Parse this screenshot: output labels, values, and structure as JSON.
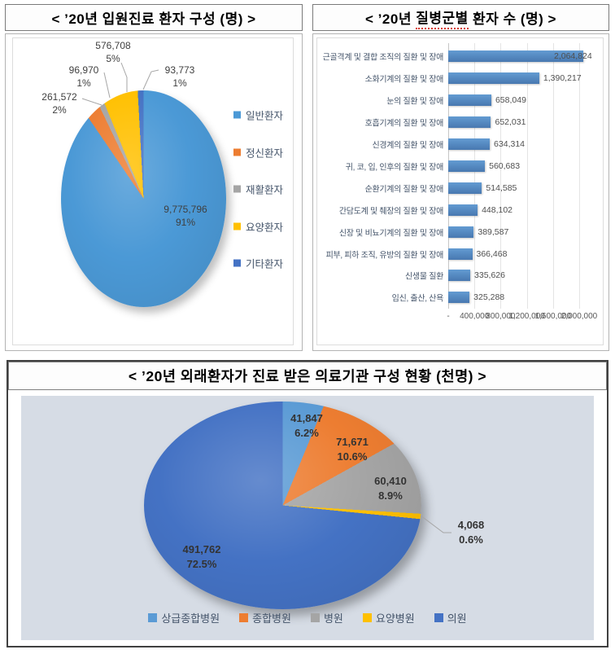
{
  "chart_data": [
    {
      "type": "pie",
      "title": "< ’20년 입원진료 환자 구성 (명) >",
      "labels": [
        "일반환자",
        "정신환자",
        "재활환자",
        "요양환자",
        "기타환자"
      ],
      "values": [
        9775796,
        261572,
        96970,
        576708,
        93773
      ],
      "values_fmt": [
        "9,775,796",
        "261,572",
        "96,970",
        "576,708",
        "93,773"
      ],
      "pct_labels": [
        "91%",
        "2%",
        "1%",
        "5%",
        "1%"
      ],
      "colors": [
        "#4B99D6",
        "#ED7D31",
        "#A5A5A5",
        "#FFC000",
        "#4472C4"
      ],
      "legend_position": "right",
      "start_angle_deg": 0
    },
    {
      "type": "bar",
      "orientation": "horizontal",
      "title": "< ’20년 질병군별 환자 수 (명) >",
      "title_parts": [
        "< ’20년 ",
        "질병군별",
        " 환자 수 (명) >"
      ],
      "categories": [
        "근골격계 및 결합 조직의 질환 및 장애",
        "소화기계의 질환 및 장애",
        "눈의 질환 및 장애",
        "호흡기계의 질환 및 장애",
        "신경계의 질환 및 장애",
        "귀, 코, 입, 인후의 질환 및 장애",
        "순환기계의 질환 및 장애",
        "간담도계 및 췌장의 질환 및 장애",
        "신장 및 비뇨기계의 질환 및 장애",
        "피부, 피하 조직, 유방의 질환 및 장애",
        "신생물 질환",
        "임신, 출산, 산욕"
      ],
      "values": [
        2064824,
        1390217,
        658049,
        652031,
        634314,
        560683,
        514585,
        448102,
        389587,
        366468,
        335626,
        325288
      ],
      "values_fmt": [
        "2,064,824",
        "1,390,217",
        "658,049",
        "652,031",
        "634,314",
        "560,683",
        "514,585",
        "448,102",
        "389,587",
        "366,468",
        "335,626",
        "325,288"
      ],
      "x_ticks": [
        {
          "label": "-",
          "value": 0
        },
        {
          "label": "400,000",
          "value": 400000
        },
        {
          "label": "800,000",
          "value": 800000
        },
        {
          "label": "1,200,000",
          "value": 1200000
        },
        {
          "label": "1,600,000",
          "value": 1600000
        },
        {
          "label": "2,000,000",
          "value": 2000000
        }
      ],
      "xlim": [
        0,
        2312000
      ],
      "bar_color": "#4E81BD",
      "grid": true,
      "value_labels": true
    },
    {
      "type": "pie",
      "title": "< ’20년 외래환자가 진료 받은 의료기관 구성 현황 (천명) >",
      "labels": [
        "상급종합병원",
        "종합병원",
        "병원",
        "요양병원",
        "의원"
      ],
      "values": [
        41847,
        71671,
        60410,
        4068,
        491762
      ],
      "values_fmt": [
        "41,847",
        "71,671",
        "60,410",
        "4,068",
        "491,762"
      ],
      "pct_labels": [
        "6.2%",
        "10.6%",
        "8.9%",
        "0.6%",
        "72.5%"
      ],
      "colors": [
        "#5B9BD5",
        "#ED7D31",
        "#A5A5A5",
        "#FFC000",
        "#4472C4"
      ],
      "legend_position": "bottom",
      "plot_bg": "#D6DCE5",
      "start_angle_deg": 0
    }
  ]
}
